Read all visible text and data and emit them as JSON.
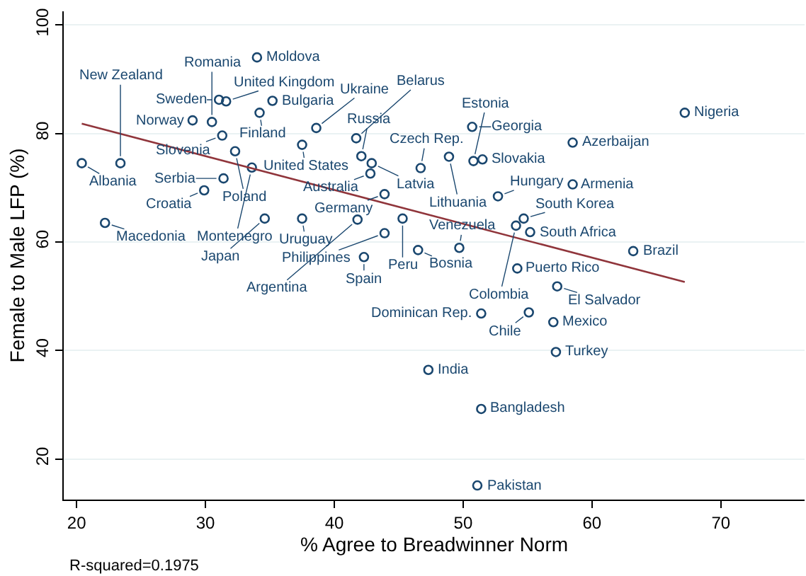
{
  "chart_data": {
    "type": "scatter",
    "xlabel": "% Agree to Breadwinner Norm",
    "ylabel": "Female to Male LFP (%)",
    "annotations": [
      "R-squared=0.1975"
    ],
    "xlim": [
      19,
      76.5
    ],
    "xticks": [
      20,
      30,
      40,
      50,
      60,
      70
    ],
    "ylim": [
      12.5,
      102.5
    ],
    "yticks": [
      20,
      40,
      60,
      80,
      100
    ],
    "grid": "y",
    "series": [
      {
        "type": "scatter",
        "color": "#1a476f",
        "marker": "circle",
        "x": [
          34.0,
          31.05,
          31.6,
          35.2,
          34.2,
          29.0,
          30.5,
          38.6,
          31.3,
          37.5,
          32.3,
          20.4,
          23.4,
          33.6,
          31.4,
          29.9,
          22.2,
          34.6,
          37.5,
          41.8,
          45.3,
          43.9,
          42.3,
          46.5,
          49.7,
          50.7,
          41.7,
          42.1,
          42.9,
          42.8,
          46.7,
          48.9,
          50.8,
          51.5,
          58.5,
          58.5,
          43.9,
          52.7,
          54.7,
          54.1,
          55.2,
          54.2,
          57.3,
          67.2,
          63.2,
          51.4,
          55.1,
          57.0,
          57.2,
          47.3,
          51.4,
          51.1
        ],
        "values": [
          94.0,
          86.2,
          85.9,
          86.0,
          83.8,
          82.4,
          82.1,
          81.0,
          79.6,
          77.9,
          76.7,
          74.5,
          74.5,
          73.7,
          71.7,
          69.5,
          63.5,
          64.3,
          64.3,
          64.1,
          64.3,
          61.6,
          57.2,
          58.5,
          58.9,
          81.2,
          79.1,
          75.8,
          74.5,
          72.6,
          73.6,
          75.7,
          74.9,
          75.2,
          78.3,
          70.6,
          68.8,
          68.4,
          64.3,
          63.0,
          61.8,
          55.1,
          51.8,
          83.8,
          58.3,
          46.8,
          47.0,
          45.2,
          39.7,
          36.4,
          29.2,
          15.1
        ],
        "value_labels": [
          "Moldova",
          "Sweden",
          "United Kingdom",
          "Bulgaria",
          "Finland",
          "Norway",
          "Romania",
          "Ukraine",
          "Slovenia",
          "United States",
          "Poland",
          "Albania",
          "New Zealand",
          "Montenegro",
          "Serbia",
          "Croatia",
          "Macedonia",
          "Japan",
          "Uruguay",
          "Argentina",
          "Peru",
          "Philippines",
          "Spain",
          "Bosnia",
          "Venezuela",
          "Georgia",
          "Belarus",
          "Russia",
          "Latvia",
          "Australia",
          "Czech Rep.",
          "Lithuania",
          "Estonia",
          "Slovakia",
          "Azerbaijan",
          "Armenia",
          "Germany",
          "Hungary",
          "South Korea",
          "Colombia",
          "South Africa",
          "Puerto Rico",
          "El Salvador",
          "Nigeria",
          "Brazil",
          "Dominican Rep.",
          "Chile",
          "Mexico",
          "Turkey",
          "India",
          "Bangladesh",
          "Pakistan"
        ]
      },
      {
        "type": "line",
        "color": "#90353b",
        "marker": "none",
        "line_style": "solid",
        "x": [
          20.4,
          67.2
        ],
        "values": [
          81.8,
          52.6
        ]
      }
    ]
  }
}
